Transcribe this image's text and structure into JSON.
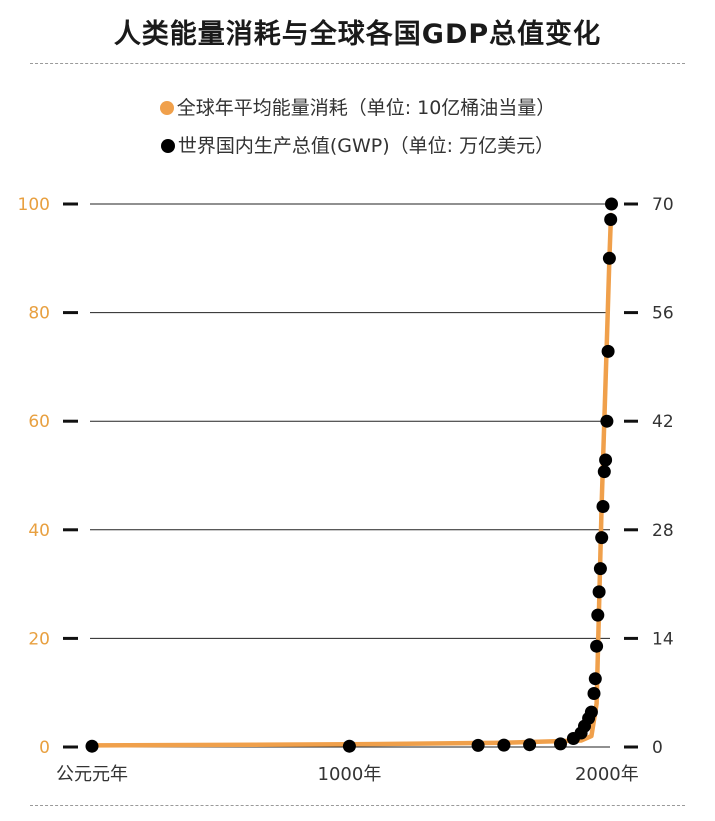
{
  "title": "人类能量消耗与全球各国GDP总值变化",
  "colors": {
    "energy": "#f0a04b",
    "gwp": "#000000",
    "left_axis": "#e8a040"
  },
  "chart_data": {
    "type": "line",
    "title": "人类能量消耗与全球各国GDP总值变化",
    "legend_position": "top",
    "grid": true,
    "xlim": [
      0,
      2020
    ],
    "x_ticks": [
      {
        "value": 0,
        "label": "公元元年"
      },
      {
        "value": 1000,
        "label": "1000年"
      },
      {
        "value": 2000,
        "label": "2000年"
      }
    ],
    "y_left": {
      "lim": [
        0,
        100
      ],
      "ticks": [
        "0",
        "20",
        "40",
        "60",
        "80",
        "100"
      ]
    },
    "y_right": {
      "lim": [
        0,
        70
      ],
      "ticks": [
        "0",
        "14",
        "28",
        "42",
        "56",
        "70"
      ]
    },
    "series": [
      {
        "name": "全球年平均能量消耗（单位: 10亿桶油当量）",
        "axis": "left",
        "style": "line",
        "x": [
          0,
          1000,
          1600,
          1900,
          1940,
          1960,
          1980,
          2000,
          2010,
          2016
        ],
        "y": [
          0.3,
          0.5,
          0.8,
          1.2,
          2,
          8,
          45,
          75,
          90,
          98
        ]
      },
      {
        "name": "世界国内生产总值(GWP)（单位: 万亿美元）",
        "axis": "right",
        "style": "points",
        "x": [
          0,
          1000,
          1500,
          1600,
          1700,
          1820,
          1870,
          1900,
          1913,
          1929,
          1940,
          1950,
          1955,
          1960,
          1965,
          1970,
          1975,
          1980,
          1985,
          1990,
          1995,
          2000,
          2005,
          2010,
          2015,
          2018
        ],
        "y": [
          0.1,
          0.1,
          0.2,
          0.25,
          0.3,
          0.4,
          1.1,
          1.8,
          2.7,
          3.7,
          4.5,
          6.9,
          8.8,
          13,
          17,
          20,
          23,
          27,
          31,
          35.5,
          37,
          42,
          51,
          63,
          68,
          70
        ]
      }
    ]
  }
}
